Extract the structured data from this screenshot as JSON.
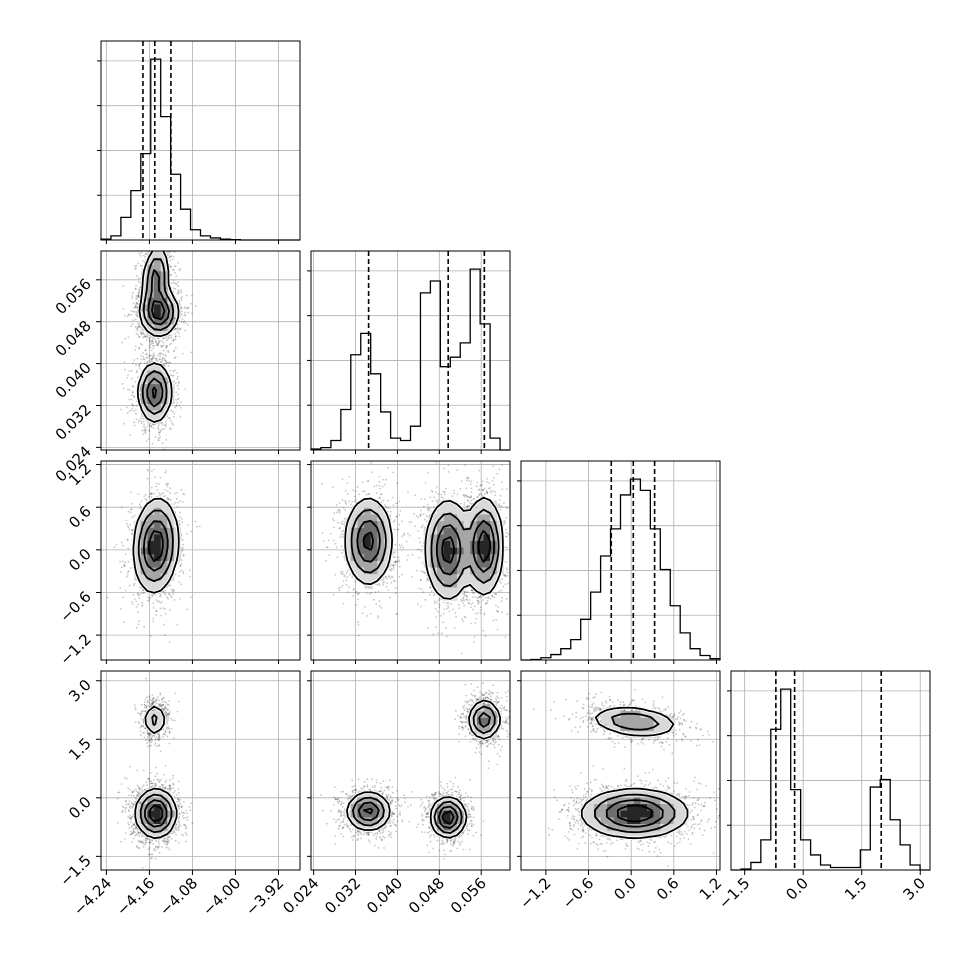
{
  "figure": {
    "background": "#ffffff",
    "line_color": "#000000",
    "grid_color": "#b0b0b0"
  },
  "chart_data": {
    "type": "corner",
    "description_of_style": "2D histograms with scatter points, filled density levels and contours; 1D step histograms with dashed quantile lines",
    "parameters": [
      {
        "range": [
          -4.25,
          -3.88
        ],
        "ticks": [
          -4.24,
          -4.16,
          -4.08,
          -4.0,
          -3.92
        ],
        "tick_labels": [
          "−4.24",
          "−4.16",
          "−4.08",
          "−4.00",
          "−3.92"
        ],
        "quantiles": [
          -4.172,
          -4.15,
          -4.12
        ],
        "hist": {
          "edges": [
            -4.25,
            -4.2315,
            -4.213,
            -4.1945,
            -4.176,
            -4.1575,
            -4.139,
            -4.1205,
            -4.102,
            -4.0835,
            -4.065,
            -4.0465,
            -4.028,
            -4.0095,
            -3.991,
            -3.9725,
            -3.954,
            -3.9355,
            -3.917,
            -3.8985,
            -3.88
          ],
          "counts": [
            2,
            10,
            55,
            120,
            210,
            440,
            300,
            160,
            75,
            25,
            10,
            5,
            2,
            1,
            0,
            0,
            0,
            0,
            0,
            0
          ]
        }
      },
      {
        "range": [
          0.0235,
          0.0615
        ],
        "ticks": [
          0.024,
          0.032,
          0.04,
          0.048,
          0.056
        ],
        "tick_labels": [
          "0.024",
          "0.032",
          "0.040",
          "0.048",
          "0.056"
        ],
        "quantiles": [
          0.0345,
          0.0497,
          0.0566
        ],
        "hist": {
          "edges": [
            0.0235,
            0.0254,
            0.0273,
            0.0292,
            0.0311,
            0.033,
            0.0349,
            0.0368,
            0.0387,
            0.0406,
            0.0425,
            0.0444,
            0.0463,
            0.0482,
            0.0501,
            0.052,
            0.0539,
            0.0558,
            0.0577,
            0.0596,
            0.0615
          ],
          "counts": [
            2,
            5,
            20,
            85,
            200,
            245,
            160,
            80,
            25,
            20,
            50,
            330,
            355,
            175,
            195,
            225,
            380,
            265,
            25,
            0
          ]
        }
      },
      {
        "range": [
          -1.55,
          1.25
        ],
        "ticks": [
          -1.2,
          -0.6,
          0.0,
          0.6,
          1.2
        ],
        "tick_labels": [
          "−1.2",
          "−0.6",
          "0.0",
          "0.6",
          "1.2"
        ],
        "quantiles": [
          -0.28,
          0.03,
          0.33
        ],
        "hist": {
          "edges": [
            -1.55,
            -1.41,
            -1.27,
            -1.13,
            -0.99,
            -0.85,
            -0.71,
            -0.57,
            -0.43,
            -0.29,
            -0.15,
            -0.01,
            0.13,
            0.27,
            0.41,
            0.55,
            0.69,
            0.83,
            0.97,
            1.11,
            1.25
          ],
          "counts": [
            0,
            1,
            5,
            12,
            25,
            45,
            90,
            150,
            230,
            290,
            365,
            400,
            375,
            290,
            200,
            120,
            60,
            25,
            10,
            3
          ]
        }
      },
      {
        "range": [
          -1.85,
          3.25
        ],
        "ticks": [
          -1.5,
          0.0,
          1.5,
          3.0
        ],
        "tick_labels": [
          "−1.5",
          "0.0",
          "1.5",
          "3.0"
        ],
        "quantiles": [
          -0.7,
          -0.22,
          2.0
        ],
        "hist": {
          "edges": [
            -1.85,
            -1.595,
            -1.34,
            -1.085,
            -0.83,
            -0.575,
            -0.32,
            -0.065,
            0.19,
            0.445,
            0.7,
            0.955,
            1.21,
            1.465,
            1.72,
            1.975,
            2.23,
            2.485,
            2.74,
            2.995,
            3.25
          ],
          "counts": [
            0,
            2,
            15,
            60,
            280,
            360,
            160,
            60,
            30,
            10,
            5,
            5,
            5,
            40,
            165,
            180,
            100,
            50,
            10,
            0
          ]
        }
      }
    ],
    "pairs": [
      {
        "row": 1,
        "col": 0,
        "modes": [
          {
            "center": [
              -4.148,
              0.0562
            ],
            "sigma": [
              0.012,
              0.0032
            ],
            "rho": 0.2,
            "weight": 0.7
          },
          {
            "center": [
              -4.142,
              0.0498
            ],
            "sigma": [
              0.017,
              0.0022
            ],
            "rho": 0.0,
            "weight": 1.0
          },
          {
            "center": [
              -4.15,
              0.0345
            ],
            "sigma": [
              0.015,
              0.0028
            ],
            "rho": 0.0,
            "weight": 0.9
          }
        ]
      },
      {
        "row": 2,
        "col": 0,
        "modes": [
          {
            "center": [
              -4.148,
              0.06
            ],
            "sigma": [
              0.02,
              0.32
            ],
            "rho": 0.1,
            "weight": 1.0
          }
        ]
      },
      {
        "row": 2,
        "col": 1,
        "modes": [
          {
            "center": [
              0.0345,
              0.12
            ],
            "sigma": [
              0.0022,
              0.3
            ],
            "rho": 0.0,
            "weight": 0.8
          },
          {
            "center": [
              0.0497,
              0.0
            ],
            "sigma": [
              0.0021,
              0.34
            ],
            "rho": 0.0,
            "weight": 0.85
          },
          {
            "center": [
              0.0566,
              0.05
            ],
            "sigma": [
              0.0017,
              0.33
            ],
            "rho": 0.0,
            "weight": 0.9
          }
        ]
      },
      {
        "row": 3,
        "col": 0,
        "modes": [
          {
            "center": [
              -4.15,
              2.0
            ],
            "sigma": [
              0.011,
              0.22
            ],
            "rho": 0.0,
            "weight": 0.35
          },
          {
            "center": [
              -4.148,
              -0.4
            ],
            "sigma": [
              0.018,
              0.3
            ],
            "rho": 0.0,
            "weight": 1.0
          }
        ]
      },
      {
        "row": 3,
        "col": 1,
        "modes": [
          {
            "center": [
              0.0566,
              2.0
            ],
            "sigma": [
              0.0015,
              0.25
            ],
            "rho": 0.0,
            "weight": 0.5
          },
          {
            "center": [
              0.0345,
              -0.35
            ],
            "sigma": [
              0.002,
              0.24
            ],
            "rho": 0.0,
            "weight": 0.6
          },
          {
            "center": [
              0.0497,
              -0.5
            ],
            "sigma": [
              0.0016,
              0.25
            ],
            "rho": 0.0,
            "weight": 0.7
          }
        ]
      },
      {
        "row": 3,
        "col": 2,
        "modes": [
          {
            "center": [
              0.05,
              1.95
            ],
            "sigma": [
              0.32,
              0.2
            ],
            "rho": -0.25,
            "weight": 0.5
          },
          {
            "center": [
              0.05,
              -0.4
            ],
            "sigma": [
              0.36,
              0.3
            ],
            "rho": 0.0,
            "weight": 1.0
          }
        ]
      }
    ]
  }
}
